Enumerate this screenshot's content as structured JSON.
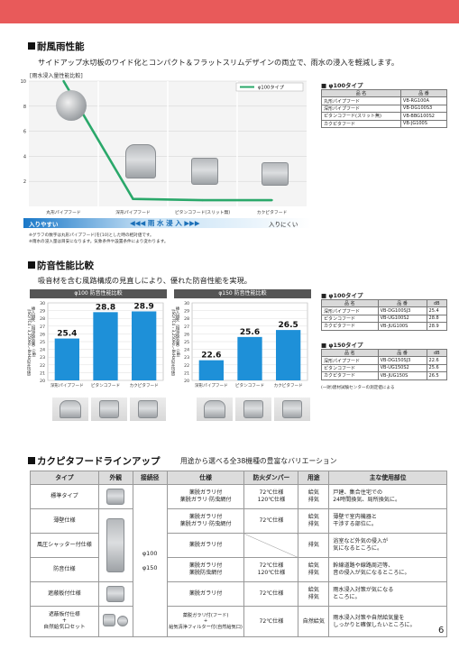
{
  "page_number": "6",
  "section1": {
    "title": "耐風雨性能",
    "desc": "サイドアップ水切板のワイド化とコンパクト＆フラットスリムデザインの両立で、雨水の浸入を軽減します。",
    "chart_title": "[雨水浸入量性能比較]",
    "legend": "φ100タイプ",
    "scale_left": "入りやすい",
    "scale_center": "◀◀◀ 雨 水 浸 入 ▶▶▶",
    "scale_right": "入りにくい",
    "note1": "※グラフの数字は丸形パイプフード[を[10]とした時の相対値です。",
    "note2": "※雨水の浸入量は目安になります。気象条件や設置条件により変わります。"
  },
  "spec1": {
    "title": "■ φ100タイプ",
    "headers": [
      "品 名",
      "品 番"
    ],
    "rows": [
      [
        "丸形パイプフード",
        "VB-RG100A"
      ],
      [
        "深形パイプフード",
        "VB-DG100S3"
      ],
      [
        "ピタンコフード(スリット無)",
        "VB-BBG100S2"
      ],
      [
        "カクピタフード",
        "VB-JG100S"
      ]
    ]
  },
  "section2": {
    "title": "防音性能比較",
    "desc": "吸音材を含む風路構成の見直しにより、優れた防音性能を実現。",
    "panel1_title": "φ100 防音性能比較",
    "panel2_title": "φ150 防音性能比較",
    "ylabel": "挿入損失（相当換気量）(dB)（ISO/TC4・3,250Hz〜8kHzの平均値）"
  },
  "spec2": {
    "title": "■ φ100タイプ",
    "headers": [
      "品 名",
      "品 番",
      "dB"
    ],
    "rows": [
      [
        "深形パイプフード",
        "VB-DG100SJ3",
        "25.4"
      ],
      [
        "ピタンコフード",
        "VB-UG100S2",
        "28.8"
      ],
      [
        "カクピタフード",
        "VB-JUG100S",
        "28.9"
      ]
    ]
  },
  "spec3": {
    "title": "■ φ150タイプ",
    "headers": [
      "品 名",
      "品 番",
      "dB"
    ],
    "rows": [
      [
        "深形パイプフード",
        "VB-DG150SJ3",
        "22.6"
      ],
      [
        "ピタンコフード",
        "VB-UG150S2",
        "25.6"
      ],
      [
        "カクピタフード",
        "VB-JUG150S",
        "26.5"
      ]
    ],
    "note": "(一財)建材試験センターの測定値による"
  },
  "section3": {
    "title": "カクピタフードラインアップ",
    "subtitle": "用途から選べる全38機種の豊富なバリエーション",
    "headers": [
      "タイプ",
      "外観",
      "接続径",
      "仕様",
      "防火ダンパー",
      "用途",
      "主な使用部位"
    ],
    "diameter": "φ100\n\nφ150",
    "rows": [
      {
        "type": "標準タイプ",
        "spec": "薬脱ガラリ付\n薬脱ガラリ·防虫網付",
        "damper": "72℃仕様\n120℃仕様",
        "use": "給気\n排気",
        "place": "戸建、集合住宅での\n24時間換気、局所換気に。"
      },
      {
        "type": "薄壁仕様",
        "spec": "薬脱ガラリ付\n薬脱ガラリ·防虫網付",
        "damper": "72℃仕様",
        "use": "給気\n排気",
        "place": "薄壁で室内機器と\n干渉する部位に。"
      },
      {
        "type": "風圧シャッター付仕様",
        "spec": "薬脱ガラリ付",
        "damper": "",
        "use": "排気",
        "place": "浴室など外気の侵入が\n気になるところに。"
      },
      {
        "type": "防音仕様",
        "spec": "薬脱ガラリ付\n薬脱防虫網付",
        "damper": "72℃仕様\n120℃仕様",
        "use": "給気\n排気",
        "place": "幹線道路や線路周辺等、\n音の侵入が気になるところに。"
      },
      {
        "type": "遮蔽板付仕様",
        "spec": "薬脱ガラリ付",
        "damper": "72℃仕様",
        "use": "給気\n排気",
        "place": "雨水浸入対策が気になる\nところに。"
      },
      {
        "type": "遮蔽板付仕様\n+\n自然給気口セット",
        "spec": "薬脱ガラリ付(フード)\n+\n給気清浄フィルター付(自然給気口)",
        "damper": "72℃仕様",
        "use": "自然給気",
        "place": "雨水浸入対策や自然給気量を\nしっかりと確保したいところに。"
      }
    ]
  },
  "chart_data": [
    {
      "type": "line",
      "title": "[雨水浸入量性能比較]",
      "categories": [
        "丸形パイプフード",
        "深形パイプフード",
        "ピタンコフード(スリット無)",
        "カクピタフード"
      ],
      "series": [
        {
          "name": "φ100タイプ",
          "values": [
            10,
            0.6,
            0.5,
            0.5
          ]
        }
      ],
      "ylim": [
        0,
        10
      ],
      "yticks": [
        2,
        4,
        6,
        8,
        10
      ],
      "color": "#2aa86a"
    },
    {
      "type": "bar",
      "title": "φ100 防音性能比較",
      "categories": [
        "深形パイプフード",
        "ピタンコフード",
        "カクピタフード"
      ],
      "values": [
        25.4,
        28.8,
        28.9
      ],
      "ylim": [
        20,
        30
      ],
      "yticks": [
        20,
        21,
        22,
        23,
        24,
        25,
        26,
        27,
        28,
        29,
        30
      ],
      "color": "#1e90d8"
    },
    {
      "type": "bar",
      "title": "φ150 防音性能比較",
      "categories": [
        "深形パイプフード",
        "ピタンコフード",
        "カクピタフード"
      ],
      "values": [
        22.6,
        25.6,
        26.5
      ],
      "ylim": [
        20,
        30
      ],
      "yticks": [
        20,
        21,
        22,
        23,
        24,
        25,
        26,
        27,
        28,
        29,
        30
      ],
      "color": "#1e90d8"
    }
  ]
}
